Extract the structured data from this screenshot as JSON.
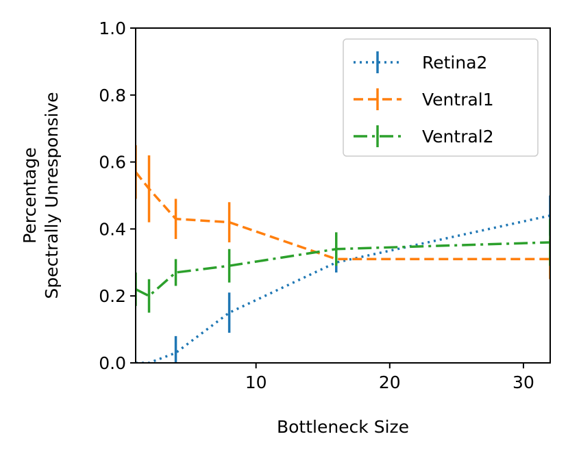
{
  "chart_data": {
    "type": "line",
    "title": "",
    "xlabel": "Bottleneck Size",
    "ylabel_lines": [
      "Percentage",
      "Spectrally Unresponsive"
    ],
    "xlim": [
      1,
      32
    ],
    "ylim": [
      0.0,
      1.0
    ],
    "xticks": [
      10,
      20,
      30
    ],
    "xtick_labels": [
      "10",
      "20",
      "30"
    ],
    "yticks": [
      0.0,
      0.2,
      0.4,
      0.6,
      0.8,
      1.0
    ],
    "ytick_labels": [
      "0.0",
      "0.2",
      "0.4",
      "0.6",
      "0.8",
      "1.0"
    ],
    "grid": false,
    "legend_position": "top-right",
    "series": [
      {
        "name": "Retina2",
        "color": "#1f77b4",
        "linestyle": "dotted",
        "x": [
          1,
          2,
          4,
          8,
          16,
          32
        ],
        "y": [
          0.0,
          0.0,
          0.03,
          0.15,
          0.3,
          0.44
        ],
        "err": [
          0.0,
          0.0,
          0.05,
          0.06,
          0.03,
          0.06
        ]
      },
      {
        "name": "Ventral1",
        "color": "#ff7f0e",
        "linestyle": "dashed",
        "x": [
          1,
          2,
          4,
          8,
          16,
          32
        ],
        "y": [
          0.57,
          0.52,
          0.43,
          0.42,
          0.31,
          0.31
        ],
        "err": [
          0.08,
          0.1,
          0.06,
          0.06,
          0.0,
          0.06
        ]
      },
      {
        "name": "Ventral2",
        "color": "#2ca02c",
        "linestyle": "dashdot",
        "x": [
          1,
          2,
          4,
          8,
          16,
          32
        ],
        "y": [
          0.22,
          0.2,
          0.27,
          0.29,
          0.34,
          0.36
        ],
        "err": [
          0.05,
          0.05,
          0.04,
          0.05,
          0.05,
          0.07
        ]
      }
    ]
  }
}
